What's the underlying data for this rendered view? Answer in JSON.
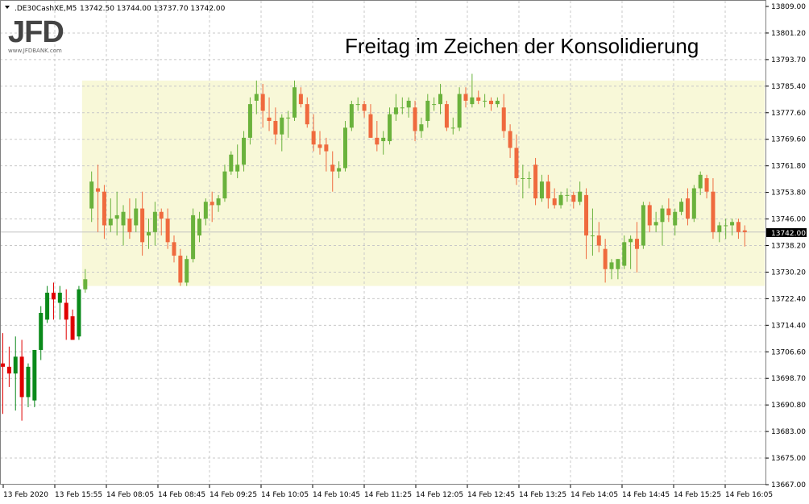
{
  "header": {
    "symbol": ".DE30CashXE,M5",
    "ohlc": "13742.50 13744.00 13737.70 13742.00"
  },
  "logo": {
    "text": "JFD",
    "url": "www.JFDBANK.com"
  },
  "chart_data": {
    "type": "candlestick",
    "title": "Freitag im Zeichen der Konsolidierung",
    "ylim": [
      13667.0,
      13809.0
    ],
    "y_ticks": [
      "13809.00",
      "13801.20",
      "13793.70",
      "13785.40",
      "13777.60",
      "13769.60",
      "13761.80",
      "13753.80",
      "13746.00",
      "13738.20",
      "13730.20",
      "13722.40",
      "13714.40",
      "13706.60",
      "13698.70",
      "13690.80",
      "13683.00",
      "13675.00",
      "13667.00"
    ],
    "x_ticks": [
      "13 Feb 2020",
      "13 Feb 15:55",
      "14 Feb 08:05",
      "14 Feb 08:45",
      "14 Feb 09:25",
      "14 Feb 10:05",
      "14 Feb 10:45",
      "14 Feb 11:25",
      "14 Feb 12:05",
      "14 Feb 12:45",
      "14 Feb 13:25",
      "14 Feb 14:05",
      "14 Feb 14:45",
      "14 Feb 15:25",
      "14 Feb 16:05"
    ],
    "current_price": "13742.00",
    "consolidation_zone": {
      "from_index": 13,
      "to_index": 119,
      "high": 13787.0,
      "low": 13726.0,
      "color": "#f8f8d8"
    },
    "colors": {
      "bull_old": "#0a8a1a",
      "bear_old": "#e00000",
      "bull": "#6ab23c",
      "bear": "#ef6a3e",
      "grid": "#c8c8c8",
      "price_line": "#c0c0c0"
    },
    "candles": [
      {
        "o": 13703,
        "h": 13712,
        "l": 13688,
        "c": 13702
      },
      {
        "o": 13702,
        "h": 13708,
        "l": 13696,
        "c": 13700
      },
      {
        "o": 13700,
        "h": 13711,
        "l": 13689,
        "c": 13705
      },
      {
        "o": 13705,
        "h": 13710,
        "l": 13686,
        "c": 13693
      },
      {
        "o": 13693,
        "h": 13703,
        "l": 13690,
        "c": 13702
      },
      {
        "o": 13692,
        "h": 13707,
        "l": 13690,
        "c": 13707
      },
      {
        "o": 13707,
        "h": 13720,
        "l": 13704,
        "c": 13718
      },
      {
        "o": 13716,
        "h": 13726,
        "l": 13715,
        "c": 13724
      },
      {
        "o": 13724,
        "h": 13727,
        "l": 13716,
        "c": 13722
      },
      {
        "o": 13721,
        "h": 13726,
        "l": 13716,
        "c": 13724
      },
      {
        "o": 13721,
        "h": 13725,
        "l": 13710,
        "c": 13716
      },
      {
        "o": 13717,
        "h": 13719,
        "l": 13710,
        "c": 13710
      },
      {
        "o": 13711,
        "h": 13726,
        "l": 13710,
        "c": 13725
      },
      {
        "o": 13725,
        "h": 13731,
        "l": 13724,
        "c": 13728
      },
      {
        "o": 13749,
        "h": 13760,
        "l": 13745,
        "c": 13757
      },
      {
        "o": 13755,
        "h": 13762,
        "l": 13742,
        "c": 13754
      },
      {
        "o": 13754,
        "h": 13756,
        "l": 13740,
        "c": 13744
      },
      {
        "o": 13744,
        "h": 13752,
        "l": 13742,
        "c": 13746
      },
      {
        "o": 13746,
        "h": 13754,
        "l": 13741,
        "c": 13747
      },
      {
        "o": 13744,
        "h": 13750,
        "l": 13738,
        "c": 13748
      },
      {
        "o": 13746,
        "h": 13752,
        "l": 13740,
        "c": 13742
      },
      {
        "o": 13744,
        "h": 13752,
        "l": 13742,
        "c": 13749
      },
      {
        "o": 13749,
        "h": 13754,
        "l": 13735,
        "c": 13739
      },
      {
        "o": 13741,
        "h": 13746,
        "l": 13737,
        "c": 13742
      },
      {
        "o": 13742,
        "h": 13751,
        "l": 13738,
        "c": 13748
      },
      {
        "o": 13748,
        "h": 13749,
        "l": 13741,
        "c": 13746
      },
      {
        "o": 13746,
        "h": 13749,
        "l": 13737,
        "c": 13739
      },
      {
        "o": 13739,
        "h": 13741,
        "l": 13733,
        "c": 13735
      },
      {
        "o": 13735,
        "h": 13737,
        "l": 13726,
        "c": 13727
      },
      {
        "o": 13727,
        "h": 13735,
        "l": 13726,
        "c": 13734
      },
      {
        "o": 13734,
        "h": 13749,
        "l": 13733,
        "c": 13747
      },
      {
        "o": 13741,
        "h": 13748,
        "l": 13739,
        "c": 13746
      },
      {
        "o": 13746,
        "h": 13752,
        "l": 13744,
        "c": 13751
      },
      {
        "o": 13751,
        "h": 13754,
        "l": 13745,
        "c": 13750
      },
      {
        "o": 13750,
        "h": 13753,
        "l": 13748,
        "c": 13752
      },
      {
        "o": 13752,
        "h": 13762,
        "l": 13751,
        "c": 13760
      },
      {
        "o": 13760,
        "h": 13766,
        "l": 13759,
        "c": 13765
      },
      {
        "o": 13760,
        "h": 13768,
        "l": 13758,
        "c": 13762
      },
      {
        "o": 13762,
        "h": 13772,
        "l": 13760,
        "c": 13770
      },
      {
        "o": 13770,
        "h": 13782,
        "l": 13768,
        "c": 13780
      },
      {
        "o": 13781,
        "h": 13787,
        "l": 13777,
        "c": 13783
      },
      {
        "o": 13783,
        "h": 13786,
        "l": 13773,
        "c": 13778
      },
      {
        "o": 13776,
        "h": 13782,
        "l": 13772,
        "c": 13775
      },
      {
        "o": 13775,
        "h": 13779,
        "l": 13768,
        "c": 13771
      },
      {
        "o": 13771,
        "h": 13777,
        "l": 13766,
        "c": 13776
      },
      {
        "o": 13776,
        "h": 13778,
        "l": 13770,
        "c": 13776
      },
      {
        "o": 13776,
        "h": 13787,
        "l": 13775,
        "c": 13785
      },
      {
        "o": 13783,
        "h": 13785,
        "l": 13779,
        "c": 13780
      },
      {
        "o": 13780,
        "h": 13782,
        "l": 13773,
        "c": 13774
      },
      {
        "o": 13772,
        "h": 13777,
        "l": 13766,
        "c": 13768
      },
      {
        "o": 13768,
        "h": 13772,
        "l": 13765,
        "c": 13767
      },
      {
        "o": 13768,
        "h": 13770,
        "l": 13760,
        "c": 13766
      },
      {
        "o": 13762,
        "h": 13766,
        "l": 13754,
        "c": 13760
      },
      {
        "o": 13760,
        "h": 13763,
        "l": 13758,
        "c": 13761
      },
      {
        "o": 13761,
        "h": 13775,
        "l": 13760,
        "c": 13773
      },
      {
        "o": 13773,
        "h": 13781,
        "l": 13772,
        "c": 13780
      },
      {
        "o": 13780,
        "h": 13782,
        "l": 13778,
        "c": 13780
      },
      {
        "o": 13780,
        "h": 13781,
        "l": 13776,
        "c": 13778
      },
      {
        "o": 13777,
        "h": 13780,
        "l": 13770,
        "c": 13770
      },
      {
        "o": 13770,
        "h": 13775,
        "l": 13766,
        "c": 13768
      },
      {
        "o": 13769,
        "h": 13772,
        "l": 13765,
        "c": 13770
      },
      {
        "o": 13769,
        "h": 13779,
        "l": 13768,
        "c": 13777
      },
      {
        "o": 13777,
        "h": 13783,
        "l": 13775,
        "c": 13779
      },
      {
        "o": 13779,
        "h": 13782,
        "l": 13777,
        "c": 13779
      },
      {
        "o": 13779,
        "h": 13782,
        "l": 13776,
        "c": 13781
      },
      {
        "o": 13779,
        "h": 13781,
        "l": 13769,
        "c": 13772
      },
      {
        "o": 13772,
        "h": 13776,
        "l": 13770,
        "c": 13774
      },
      {
        "o": 13775,
        "h": 13783,
        "l": 13773,
        "c": 13781
      },
      {
        "o": 13780,
        "h": 13782,
        "l": 13778,
        "c": 13780
      },
      {
        "o": 13780,
        "h": 13786,
        "l": 13777,
        "c": 13783
      },
      {
        "o": 13780,
        "h": 13781,
        "l": 13772,
        "c": 13773
      },
      {
        "o": 13773,
        "h": 13776,
        "l": 13771,
        "c": 13773
      },
      {
        "o": 13773,
        "h": 13785,
        "l": 13772,
        "c": 13783
      },
      {
        "o": 13783,
        "h": 13785,
        "l": 13779,
        "c": 13781
      },
      {
        "o": 13780,
        "h": 13789,
        "l": 13779,
        "c": 13782
      },
      {
        "o": 13782,
        "h": 13784,
        "l": 13780,
        "c": 13781
      },
      {
        "o": 13781,
        "h": 13783,
        "l": 13779,
        "c": 13781
      },
      {
        "o": 13781,
        "h": 13782,
        "l": 13778,
        "c": 13780
      },
      {
        "o": 13780,
        "h": 13782,
        "l": 13779,
        "c": 13781
      },
      {
        "o": 13779,
        "h": 13783,
        "l": 13770,
        "c": 13772
      },
      {
        "o": 13772,
        "h": 13774,
        "l": 13764,
        "c": 13767
      },
      {
        "o": 13767,
        "h": 13771,
        "l": 13756,
        "c": 13758
      },
      {
        "o": 13758,
        "h": 13762,
        "l": 13752,
        "c": 13758
      },
      {
        "o": 13758,
        "h": 13760,
        "l": 13755,
        "c": 13758
      },
      {
        "o": 13762,
        "h": 13764,
        "l": 13750,
        "c": 13752
      },
      {
        "o": 13752,
        "h": 13759,
        "l": 13751,
        "c": 13757
      },
      {
        "o": 13757,
        "h": 13759,
        "l": 13749,
        "c": 13752
      },
      {
        "o": 13752,
        "h": 13755,
        "l": 13749,
        "c": 13750
      },
      {
        "o": 13750,
        "h": 13754,
        "l": 13749,
        "c": 13753
      },
      {
        "o": 13753,
        "h": 13755,
        "l": 13751,
        "c": 13753
      },
      {
        "o": 13753,
        "h": 13754,
        "l": 13749,
        "c": 13751
      },
      {
        "o": 13751,
        "h": 13757,
        "l": 13750,
        "c": 13754
      },
      {
        "o": 13753,
        "h": 13755,
        "l": 13734,
        "c": 13741
      },
      {
        "o": 13741,
        "h": 13749,
        "l": 13735,
        "c": 13741
      },
      {
        "o": 13741,
        "h": 13745,
        "l": 13736,
        "c": 13738
      },
      {
        "o": 13737,
        "h": 13740,
        "l": 13727,
        "c": 13731
      },
      {
        "o": 13731,
        "h": 13734,
        "l": 13728,
        "c": 13733
      },
      {
        "o": 13731,
        "h": 13734,
        "l": 13728,
        "c": 13734
      },
      {
        "o": 13732,
        "h": 13741,
        "l": 13731,
        "c": 13739
      },
      {
        "o": 13739,
        "h": 13741,
        "l": 13731,
        "c": 13740
      },
      {
        "o": 13740,
        "h": 13745,
        "l": 13730,
        "c": 13737
      },
      {
        "o": 13738,
        "h": 13751,
        "l": 13737,
        "c": 13750
      },
      {
        "o": 13750,
        "h": 13751,
        "l": 13742,
        "c": 13744
      },
      {
        "o": 13744,
        "h": 13748,
        "l": 13742,
        "c": 13745
      },
      {
        "o": 13745,
        "h": 13750,
        "l": 13738,
        "c": 13749
      },
      {
        "o": 13749,
        "h": 13752,
        "l": 13745,
        "c": 13747
      },
      {
        "o": 13744,
        "h": 13749,
        "l": 13741,
        "c": 13748
      },
      {
        "o": 13748,
        "h": 13752,
        "l": 13747,
        "c": 13751
      },
      {
        "o": 13752,
        "h": 13755,
        "l": 13744,
        "c": 13746
      },
      {
        "o": 13746,
        "h": 13756,
        "l": 13745,
        "c": 13755
      },
      {
        "o": 13755,
        "h": 13760,
        "l": 13753,
        "c": 13759
      },
      {
        "o": 13758,
        "h": 13759,
        "l": 13752,
        "c": 13754
      },
      {
        "o": 13754,
        "h": 13758,
        "l": 13740,
        "c": 13742
      },
      {
        "o": 13742,
        "h": 13745,
        "l": 13739,
        "c": 13744
      },
      {
        "o": 13744,
        "h": 13746,
        "l": 13740,
        "c": 13744
      },
      {
        "o": 13744,
        "h": 13746,
        "l": 13741,
        "c": 13745
      },
      {
        "o": 13745,
        "h": 13746,
        "l": 13740,
        "c": 13742
      },
      {
        "o": 13742.5,
        "h": 13744,
        "l": 13737.7,
        "c": 13742
      }
    ]
  }
}
